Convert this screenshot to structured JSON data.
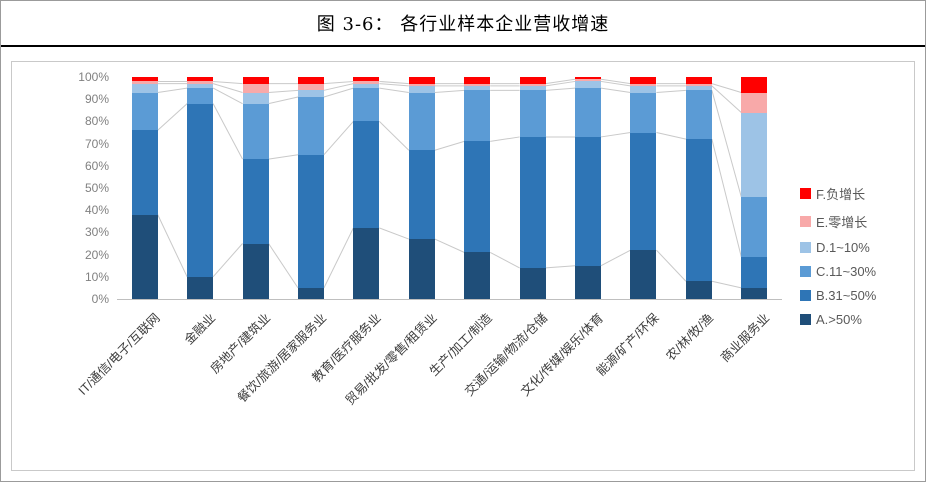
{
  "figure": {
    "title": "图 3-6：  各行业样本企业营收增速"
  },
  "chart_data": {
    "type": "bar",
    "stacked": true,
    "percent_stacked": true,
    "title": "图 3-6：  各行业样本企业营收增速",
    "xlabel": "",
    "ylabel": "",
    "ylim": [
      0,
      100
    ],
    "grid": false,
    "legend_position": "right",
    "series_lines_color": "#c9c9c9",
    "yticks": [
      "0%",
      "10%",
      "20%",
      "30%",
      "40%",
      "50%",
      "60%",
      "70%",
      "80%",
      "90%",
      "100%"
    ],
    "categories": [
      "IT/通信/电子/互联网",
      "金融业",
      "房地产/建筑业",
      "餐饮/旅游/居家服务业",
      "教育/医疗服务业",
      "贸易/批发/零售/租赁业",
      "生产/加工/制造",
      "交通/运输/物流/仓储",
      "文化/传媒/娱乐/体育",
      "能源/矿产/环保",
      "农/林/牧/渔",
      "商业服务业"
    ],
    "series": [
      {
        "name": "A.>50%",
        "color": "#1f4e79",
        "values": [
          38,
          10,
          25,
          5,
          32,
          27,
          21,
          14,
          15,
          22,
          8,
          5
        ]
      },
      {
        "name": "B.31~50%",
        "color": "#2e75b6",
        "values": [
          38,
          78,
          38,
          60,
          48,
          40,
          50,
          59,
          58,
          53,
          64,
          14
        ]
      },
      {
        "name": "C.11~30%",
        "color": "#5b9bd5",
        "values": [
          17,
          7,
          25,
          26,
          15,
          26,
          23,
          21,
          22,
          18,
          22,
          27
        ]
      },
      {
        "name": "D.1~10%",
        "color": "#9dc3e6",
        "values": [
          4,
          2,
          5,
          3,
          2,
          3,
          2,
          2,
          3,
          3,
          2,
          38
        ]
      },
      {
        "name": "E.零增长",
        "color": "#f8a9a9",
        "values": [
          1,
          1,
          4,
          3,
          1,
          1,
          1,
          1,
          1,
          1,
          1,
          9
        ]
      },
      {
        "name": "F.负增长",
        "color": "#ff0000",
        "values": [
          2,
          2,
          3,
          3,
          2,
          3,
          3,
          3,
          1,
          3,
          3,
          7
        ]
      }
    ]
  }
}
